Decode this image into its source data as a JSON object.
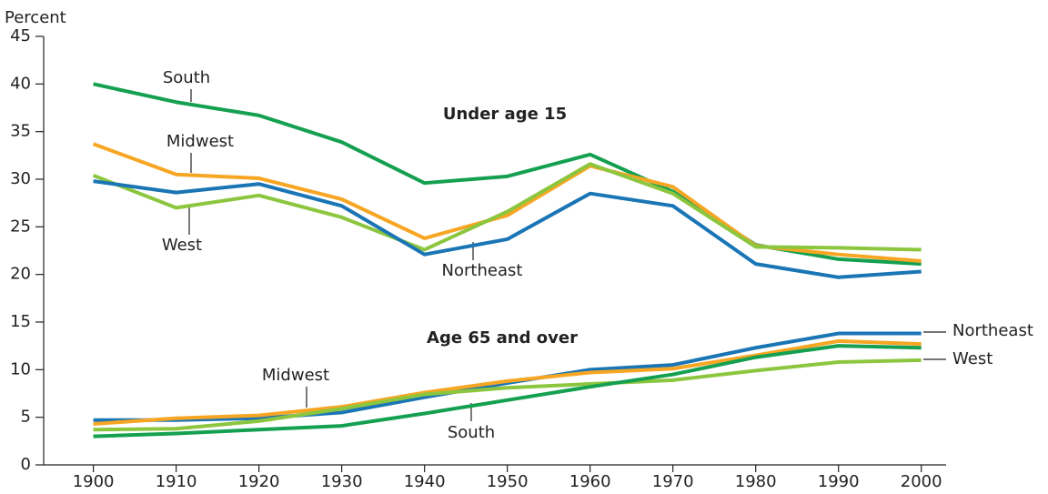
{
  "chart_data": {
    "type": "line",
    "y_label": "Percent",
    "annotations": [
      "Under age 15",
      "Age 65 and over"
    ],
    "x": [
      1900,
      1910,
      1920,
      1930,
      1940,
      1950,
      1960,
      1970,
      1980,
      1990,
      2000
    ],
    "xlim": [
      1894,
      2003
    ],
    "xticks": [
      1900,
      1910,
      1920,
      1930,
      1940,
      1950,
      1960,
      1970,
      1980,
      1990,
      2000
    ],
    "ylim": [
      0,
      45
    ],
    "yticks": [
      0,
      5,
      10,
      15,
      20,
      25,
      30,
      35,
      40,
      45
    ],
    "series": [
      {
        "name": "South",
        "color": "#14a050",
        "values": [
          40,
          38.1,
          36.7,
          33.9,
          29.6,
          30.3,
          32.6,
          28.7,
          23.1,
          21.6,
          21.1
        ]
      },
      {
        "name": "Midwest",
        "color": "#f6a623",
        "values": [
          33.7,
          30.5,
          30.1,
          27.9,
          23.8,
          26.2,
          31.4,
          29.2,
          23.0,
          22.1,
          21.4
        ]
      },
      {
        "name": "West",
        "color": "#8cc63f",
        "values": [
          30.4,
          27.0,
          28.3,
          26.0,
          22.6,
          26.6,
          31.6,
          28.5,
          22.9,
          22.8,
          22.6
        ]
      },
      {
        "name": "Northeast",
        "color": "#1a75b5",
        "values": [
          29.8,
          28.6,
          29.5,
          27.2,
          22.1,
          23.7,
          28.5,
          27.2,
          21.1,
          19.7,
          20.3
        ]
      },
      {
        "name": "Northeast",
        "color": "#1a75b5",
        "values": [
          4.7,
          4.7,
          4.9,
          5.5,
          7.1,
          8.6,
          10.0,
          10.5,
          12.3,
          13.8,
          13.8
        ]
      },
      {
        "name": "Midwest",
        "color": "#f6a623",
        "values": [
          4.3,
          4.9,
          5.2,
          6.1,
          7.6,
          8.8,
          9.7,
          10.1,
          11.5,
          13.0,
          12.7
        ]
      },
      {
        "name": "West",
        "color": "#8cc63f",
        "values": [
          3.7,
          3.8,
          4.6,
          5.9,
          7.4,
          8.1,
          8.5,
          8.9,
          9.9,
          10.8,
          11.0
        ]
      },
      {
        "name": "South",
        "color": "#14a050",
        "values": [
          3.0,
          3.3,
          3.7,
          4.1,
          5.4,
          6.8,
          8.2,
          9.5,
          11.3,
          12.5,
          12.3
        ]
      }
    ]
  }
}
